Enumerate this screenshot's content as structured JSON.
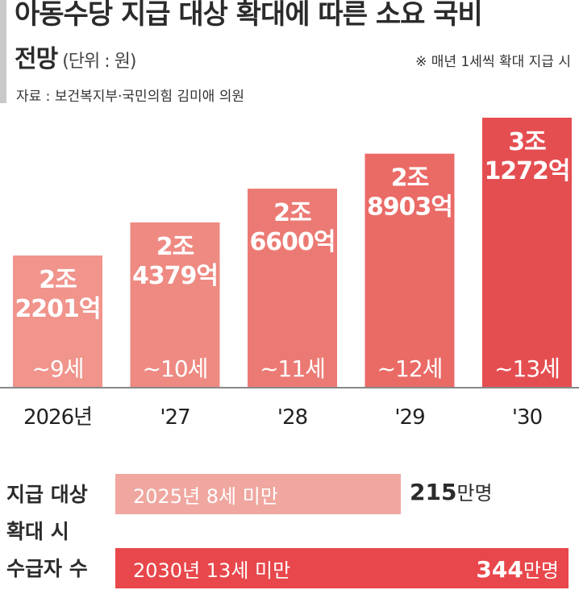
{
  "header": {
    "title_line1": "아동수당 지급 대상 확대에 따른 소요 국비",
    "title_line2": "전망",
    "unit": "(단위 : 원)",
    "note": "※ 매년 1세씩 확대 지급 시",
    "source": "자료 : 보건복지부·국민의힘 김미애 의원"
  },
  "chart_data": {
    "type": "bar",
    "title": "아동수당 지급 대상 확대에 따른 소요 국비 전망",
    "ylabel": "",
    "unit": "원",
    "categories": [
      "2026년",
      "'27",
      "'28",
      "'29",
      "'30"
    ],
    "values_eok": [
      22201,
      24379,
      26600,
      28903,
      31272
    ],
    "value_labels": [
      [
        "2조",
        "2201억"
      ],
      [
        "2조",
        "4379억"
      ],
      [
        "2조",
        "6600억"
      ],
      [
        "2조",
        "8903억"
      ],
      [
        "3조",
        "1272억"
      ]
    ],
    "age_labels": [
      "~9세",
      "~10세",
      "~11세",
      "~12세",
      "~13세"
    ],
    "colors": [
      "#f0948c",
      "#ee8a82",
      "#ec7a74",
      "#ea6a66",
      "#e54e51"
    ],
    "ylim": [
      0,
      31272
    ],
    "grid": false
  },
  "recipients": {
    "label_lines": [
      "지급 대상",
      "확대 시",
      "수급자 수"
    ],
    "rows": [
      {
        "label": "2025년 8세 미만",
        "value": "215",
        "unit": "만명",
        "count": 215
      },
      {
        "label": "2030년 13세 미만",
        "value": "344",
        "unit": "만명",
        "count": 344
      }
    ]
  }
}
